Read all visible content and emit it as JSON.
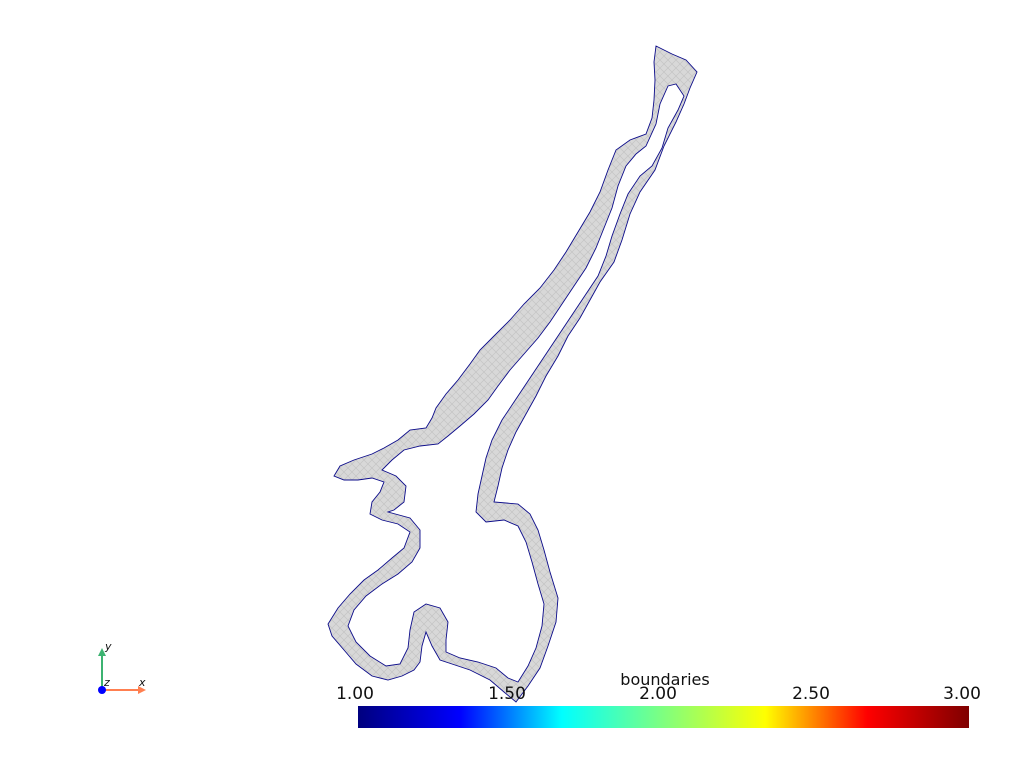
{
  "scene": {
    "description_colors": {
      "mesh_fill": "#d3d3d3",
      "mesh_edge": "#c8c8c8",
      "boundary_outline": "#0b0b8a",
      "background": "#ffffff"
    }
  },
  "scalar_bar": {
    "title": "boundaries",
    "tick_labels": [
      "1.00",
      "1.50",
      "2.00",
      "2.50",
      "3.00"
    ],
    "range": [
      1.0,
      3.0
    ],
    "colormap": "jet",
    "colormap_stops": [
      "#00007f",
      "#0000ff",
      "#00ffff",
      "#7fff7f",
      "#ffff00",
      "#ff0000",
      "#7f0000"
    ]
  },
  "orientation_axes": {
    "x_label": "x",
    "y_label": "y",
    "z_label": "z",
    "x_color": "#ff7f50",
    "y_color": "#3cb371",
    "z_color": "#0000ff"
  }
}
